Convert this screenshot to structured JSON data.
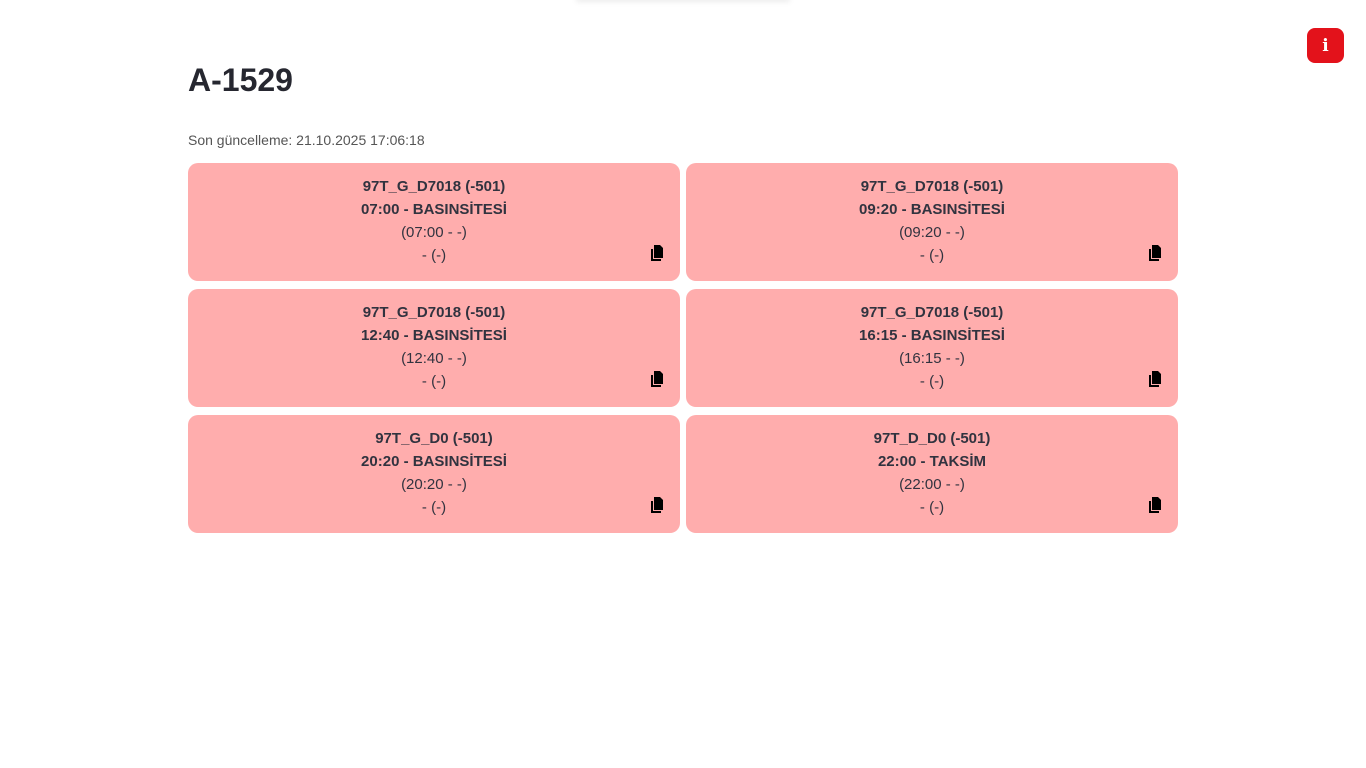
{
  "header": {
    "title": "A-1529",
    "updated": "Son güncelleme: 21.10.2025 17:06:18",
    "info_label": "i",
    "info_color": "#e3121b"
  },
  "card_color": "#ffadad",
  "cards": [
    {
      "line1": "97T_G_D7018 (-501)",
      "line2": "07:00 - BASINSİTESİ",
      "line3": "(07:00 - -)",
      "line4": "- (-)"
    },
    {
      "line1": "97T_G_D7018 (-501)",
      "line2": "09:20 - BASINSİTESİ",
      "line3": "(09:20 - -)",
      "line4": "- (-)"
    },
    {
      "line1": "97T_G_D7018 (-501)",
      "line2": "12:40 - BASINSİTESİ",
      "line3": "(12:40 - -)",
      "line4": "- (-)"
    },
    {
      "line1": "97T_G_D7018 (-501)",
      "line2": "16:15 - BASINSİTESİ",
      "line3": "(16:15 - -)",
      "line4": "- (-)"
    },
    {
      "line1": "97T_G_D0 (-501)",
      "line2": "20:20 - BASINSİTESİ",
      "line3": "(20:20 - -)",
      "line4": "- (-)"
    },
    {
      "line1": "97T_D_D0 (-501)",
      "line2": "22:00 - TAKSİM",
      "line3": "(22:00 - -)",
      "line4": "- (-)"
    }
  ]
}
